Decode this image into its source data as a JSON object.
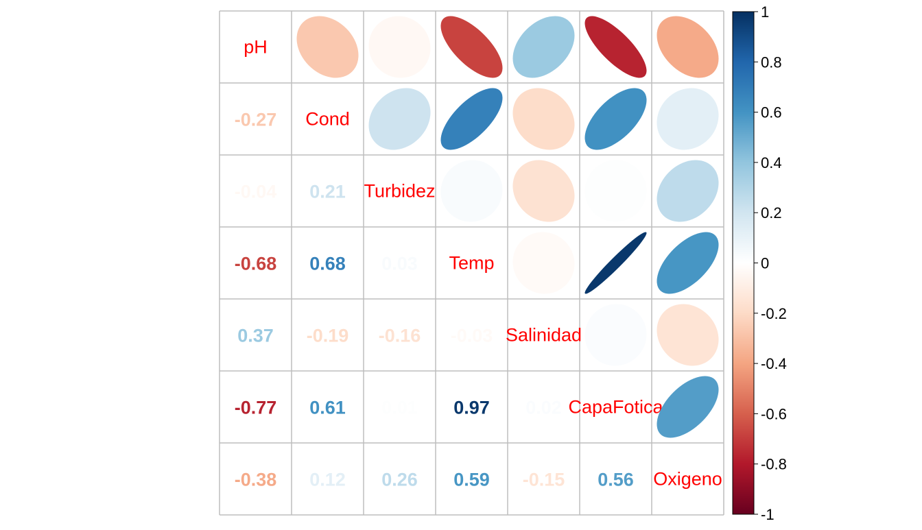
{
  "chart_data": {
    "type": "heatmap",
    "variables": [
      "pH",
      "Cond",
      "Turbidez",
      "Temp",
      "Salinidad",
      "CapaFotica",
      "Oxigeno"
    ],
    "correlation_matrix": [
      [
        1.0,
        -0.27,
        -0.04,
        -0.68,
        0.37,
        -0.77,
        -0.38
      ],
      [
        -0.27,
        1.0,
        0.21,
        0.68,
        -0.19,
        0.61,
        0.12
      ],
      [
        -0.04,
        0.21,
        1.0,
        0.03,
        -0.16,
        0.01,
        0.26
      ],
      [
        -0.68,
        0.68,
        0.03,
        1.0,
        -0.03,
        0.97,
        0.59
      ],
      [
        0.37,
        -0.19,
        -0.16,
        -0.03,
        1.0,
        0.02,
        -0.15
      ],
      [
        -0.77,
        0.61,
        0.01,
        0.97,
        0.02,
        1.0,
        0.56
      ],
      [
        -0.38,
        0.12,
        0.26,
        0.59,
        -0.15,
        0.56,
        1.0
      ]
    ],
    "lower_triangle_labels": [
      [
        null,
        null,
        null,
        null,
        null,
        null,
        null
      ],
      [
        "-0.27",
        null,
        null,
        null,
        null,
        null,
        null
      ],
      [
        "-0.04",
        "0.21",
        null,
        null,
        null,
        null,
        null
      ],
      [
        "-0.68",
        "0.68",
        "0.03",
        null,
        null,
        null,
        null
      ],
      [
        "0.37",
        "-0.19",
        "-0.16",
        "-0.03",
        null,
        null,
        null
      ],
      [
        "-0.77",
        "0.61",
        "0.01",
        "0.97",
        "0.02",
        null,
        null
      ],
      [
        "-0.38",
        "0.12",
        "0.26",
        "0.59",
        "-0.15",
        "0.56",
        null
      ]
    ],
    "upper_method": "ellipse",
    "lower_method": "number",
    "diagonal": "variable names",
    "colorbar": {
      "range": [
        -1,
        1
      ],
      "ticks": [
        "1",
        "0.8",
        "0.6",
        "0.4",
        "0.2",
        "0",
        "-0.2",
        "-0.4",
        "-0.6",
        "-0.8",
        "-1"
      ],
      "palette": [
        "#67001F",
        "#B2182B",
        "#D6604D",
        "#F4A582",
        "#FDDBC7",
        "#FFFFFF",
        "#D1E5F0",
        "#92C5DE",
        "#4393C3",
        "#2166AC",
        "#053061"
      ]
    },
    "label_color": "#FF0000",
    "grid_color": "#BEBEBE",
    "grid": true
  }
}
